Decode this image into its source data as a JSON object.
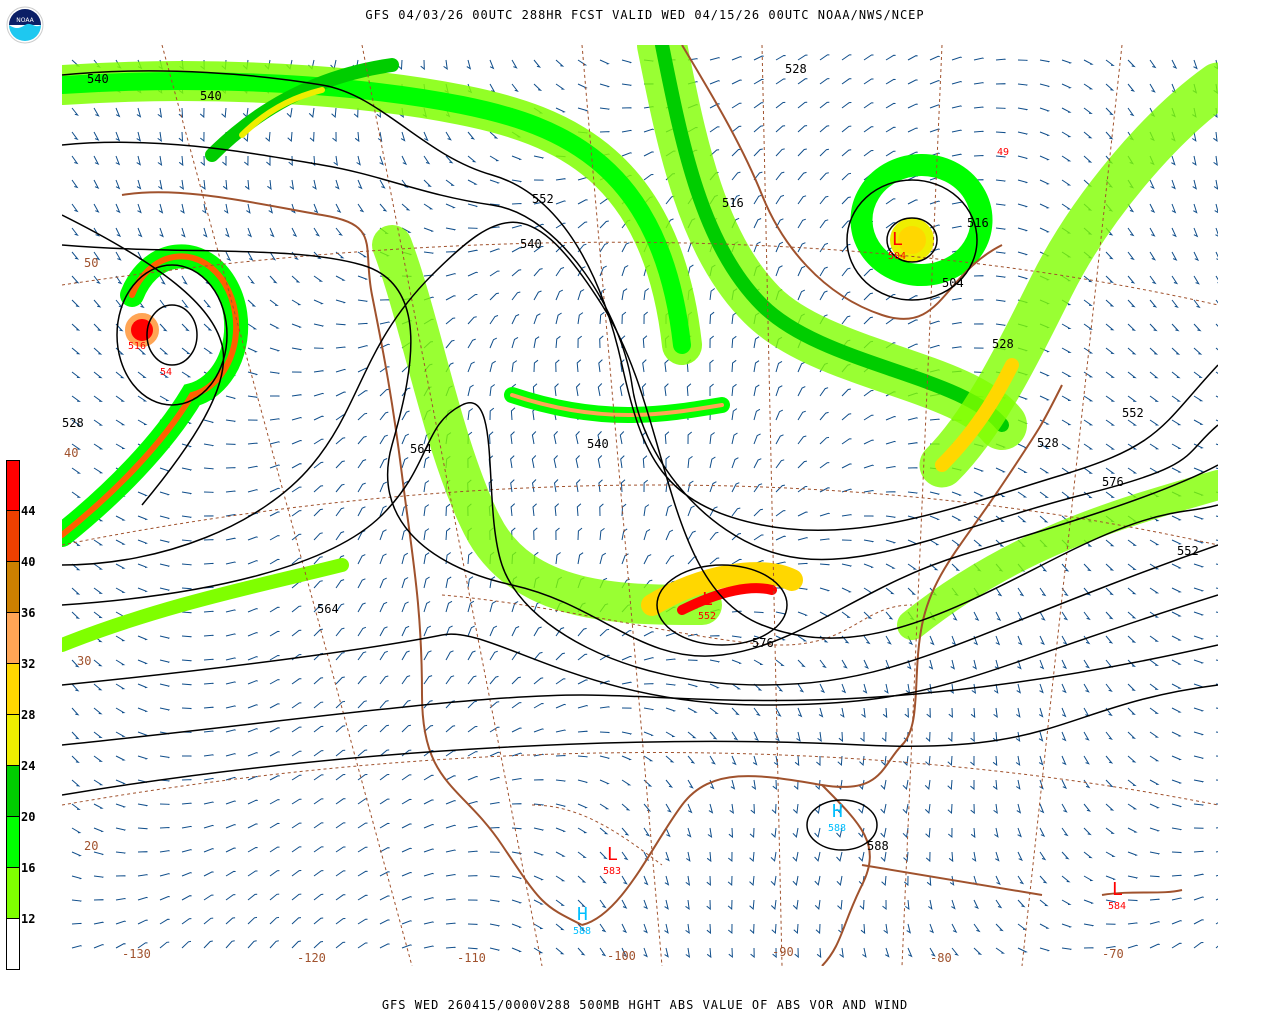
{
  "header": {
    "title": "GFS 04/03/26 00UTC 288HR FCST VALID WED 04/15/26 00UTC NOAA/NWS/NCEP",
    "logo_text": "NOAA"
  },
  "footer": {
    "caption": "GFS WED 260415/0000V288 500MB HGHT ABS VALUE OF ABS VOR AND WIND"
  },
  "legend": {
    "labels": [
      "44",
      "40",
      "36",
      "32",
      "28",
      "24",
      "20",
      "16",
      "12"
    ],
    "colors": [
      "#ff0000",
      "#ee4000",
      "#cd8000",
      "#ffa555",
      "#ffd700",
      "#eeee00",
      "#00cd00",
      "#00ff00",
      "#7fff00",
      "#ffffff"
    ]
  },
  "map": {
    "colors": {
      "height_contour": "#000000",
      "coast": "#a0522d",
      "wind_barb": "#104e8b",
      "vorticity_max": "#ff0000",
      "low_label": "#ff0000",
      "high_label": "#00bfff"
    },
    "contour_labels": [
      "540",
      "540",
      "528",
      "516",
      "504",
      "516",
      "528",
      "540",
      "552",
      "564",
      "576",
      "552",
      "564",
      "576",
      "588",
      "540",
      "528",
      "528",
      "552"
    ],
    "longitude_labels": [
      "-130",
      "-120",
      "-110",
      "-100",
      "-90",
      "-80",
      "-70"
    ],
    "latitude_labels": [
      "50",
      "40",
      "30",
      "20"
    ],
    "centers": [
      {
        "type": "L",
        "value": "504"
      },
      {
        "type": "L",
        "value": "516"
      },
      {
        "type": "L",
        "value": "552"
      },
      {
        "type": "H",
        "value": "588"
      },
      {
        "type": "H",
        "value": "588"
      },
      {
        "type": "L",
        "value": "584"
      },
      {
        "type": "L",
        "value": "583"
      }
    ],
    "vort_values": [
      "54",
      "49"
    ]
  }
}
